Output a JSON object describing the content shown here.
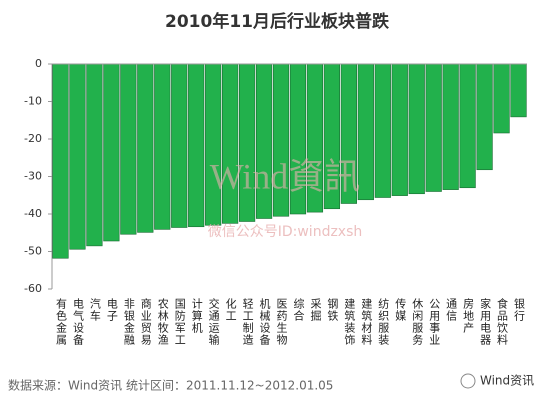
{
  "chart_data": {
    "type": "bar",
    "title": "2010年11月后行业板块普跌",
    "categories": [
      "有色金属",
      "电气设备",
      "汽车",
      "电子",
      "非银金融",
      "商业贸易",
      "农林牧渔",
      "国防军工",
      "计算机",
      "交通运输",
      "化工",
      "轻工制造",
      "机械设备",
      "医药生物",
      "综合",
      "采掘",
      "钢铁",
      "建筑装饰",
      "建筑材料",
      "纺织服装",
      "传媒",
      "休闲服务",
      "公用事业",
      "通信",
      "房地产",
      "家用电器",
      "食品饮料",
      "银行"
    ],
    "values": [
      -51.8,
      -49.4,
      -48.5,
      -47.2,
      -45.4,
      -44.9,
      -44.1,
      -43.6,
      -43.4,
      -43.0,
      -42.5,
      -42.0,
      -41.2,
      -40.6,
      -40.0,
      -39.5,
      -38.6,
      -37.2,
      -36.2,
      -35.6,
      -35.1,
      -34.6,
      -34.0,
      -33.5,
      -33.0,
      -28.2,
      -18.4,
      -14.1
    ],
    "color": "#22b14c",
    "ylim": [
      -60,
      0
    ],
    "yticks": [
      0,
      -10,
      -20,
      -30,
      -40,
      -50,
      -60
    ],
    "grid": false
  },
  "watermark": {
    "brand": "Wind資訊",
    "account": "微信公众号ID:windzxsh"
  },
  "source": "数据来源：Wind资讯  统计区间：2011.11.12~2012.01.05",
  "logo_text": "Wind资讯"
}
